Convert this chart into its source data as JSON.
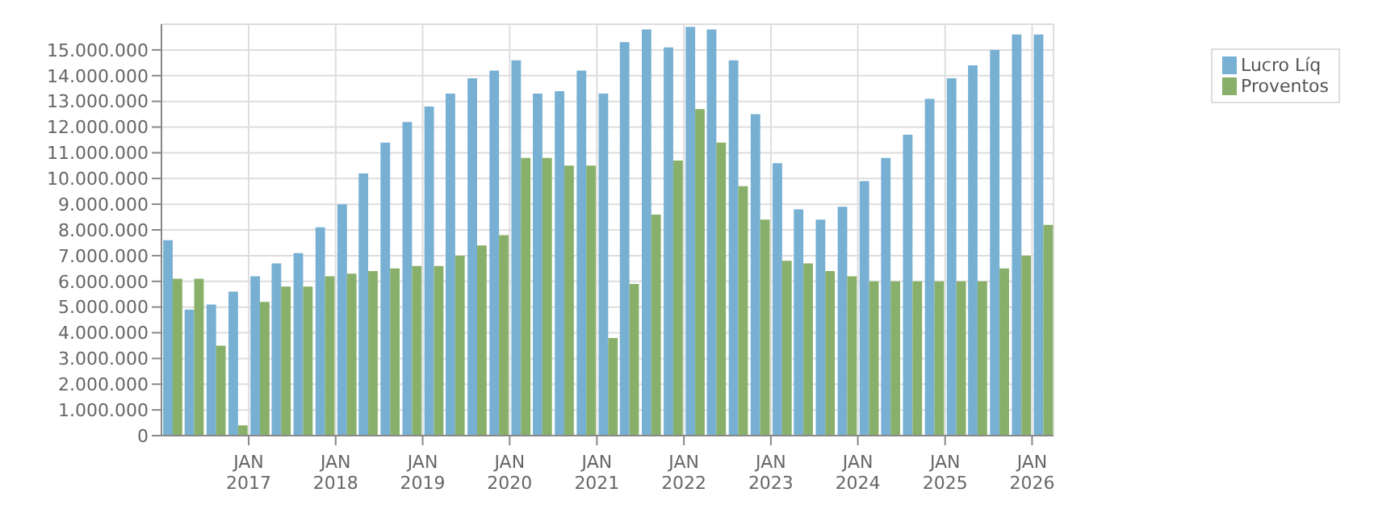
{
  "chart_data": {
    "type": "bar",
    "x": [
      "2016-02-15",
      "2016-05-15",
      "2016-08-15",
      "2016-11-15",
      "2017-02-15",
      "2017-05-15",
      "2017-08-15",
      "2017-11-15",
      "2018-02-15",
      "2018-05-15",
      "2018-08-15",
      "2018-11-15",
      "2019-02-15",
      "2019-05-15",
      "2019-08-15",
      "2019-11-15",
      "2020-02-15",
      "2020-05-15",
      "2020-08-15",
      "2020-11-15",
      "2021-02-15",
      "2021-05-15",
      "2021-08-15",
      "2021-11-15",
      "2022-02-15",
      "2022-05-15",
      "2022-08-15",
      "2022-11-15",
      "2023-02-15",
      "2023-05-15",
      "2023-08-15",
      "2023-11-15",
      "2024-02-15",
      "2024-05-15",
      "2024-08-15",
      "2024-11-15",
      "2025-02-15",
      "2025-05-15",
      "2025-08-15",
      "2025-11-15",
      "2026-02-15"
    ],
    "series": [
      {
        "name": "Lucro Líq",
        "color": "#77b0d3",
        "values": [
          7600000,
          4900000,
          5100000,
          5600000,
          6200000,
          6700000,
          7100000,
          8100000,
          9000000,
          10200000,
          11400000,
          12200000,
          12800000,
          13300000,
          13900000,
          14200000,
          14600000,
          13300000,
          13400000,
          14200000,
          13300000,
          15300000,
          15800000,
          15100000,
          15900000,
          15800000,
          14600000,
          12500000,
          10600000,
          8800000,
          8400000,
          8900000,
          9900000,
          10800000,
          11700000,
          13100000,
          13900000,
          14400000,
          15000000,
          15600000,
          15600000
        ]
      },
      {
        "name": "Proventos",
        "color": "#88b06a",
        "values": [
          6100000,
          6100000,
          3500000,
          400000,
          5200000,
          5800000,
          5800000,
          6200000,
          6300000,
          6400000,
          6500000,
          6600000,
          6600000,
          7000000,
          7400000,
          7800000,
          10800000,
          10800000,
          10500000,
          10500000,
          3800000,
          5900000,
          8600000,
          10700000,
          12700000,
          11400000,
          9700000,
          8400000,
          6800000,
          6700000,
          6400000,
          6200000,
          6000000,
          6000000,
          6000000,
          6000000,
          6000000,
          6000000,
          6500000,
          7000000,
          8200000
        ]
      }
    ],
    "xlim": [
      "2016-01-01",
      "2026-04-01"
    ],
    "xticks": [
      {
        "value": "2017-01-01",
        "label": "JAN 2017"
      },
      {
        "value": "2018-01-01",
        "label": "JAN 2018"
      },
      {
        "value": "2019-01-01",
        "label": "JAN 2019"
      },
      {
        "value": "2020-01-01",
        "label": "JAN 2020"
      },
      {
        "value": "2021-01-01",
        "label": "JAN 2021"
      },
      {
        "value": "2022-01-01",
        "label": "JAN 2022"
      },
      {
        "value": "2023-01-01",
        "label": "JAN 2023"
      },
      {
        "value": "2024-01-01",
        "label": "JAN 2024"
      },
      {
        "value": "2025-01-01",
        "label": "JAN 2025"
      },
      {
        "value": "2026-01-01",
        "label": "JAN 2026"
      }
    ],
    "ylim": [
      0,
      16000000
    ],
    "yticks": [
      0,
      {
        "value": 1000000,
        "label": "1.000.000"
      },
      {
        "value": 2000000,
        "label": "2.000.000"
      },
      {
        "value": 3000000,
        "label": "3.000.000"
      },
      {
        "value": 4000000,
        "label": "4.000.000"
      },
      {
        "value": 5000000,
        "label": "5.000.000"
      },
      {
        "value": 6000000,
        "label": "6.000.000"
      },
      {
        "value": 7000000,
        "label": "7.000.000"
      },
      {
        "value": 8000000,
        "label": "8.000.000"
      },
      {
        "value": 9000000,
        "label": "9.000.000"
      },
      {
        "value": 10000000,
        "label": "10.000.000"
      },
      {
        "value": 11000000,
        "label": "11.000.000"
      },
      {
        "value": 12000000,
        "label": "12.000.000"
      },
      {
        "value": 13000000,
        "label": "13.000.000"
      },
      {
        "value": 14000000,
        "label": "14.000.000"
      },
      {
        "value": 15000000,
        "label": "15.000.000"
      }
    ],
    "grid": true,
    "legend": "top right"
  }
}
